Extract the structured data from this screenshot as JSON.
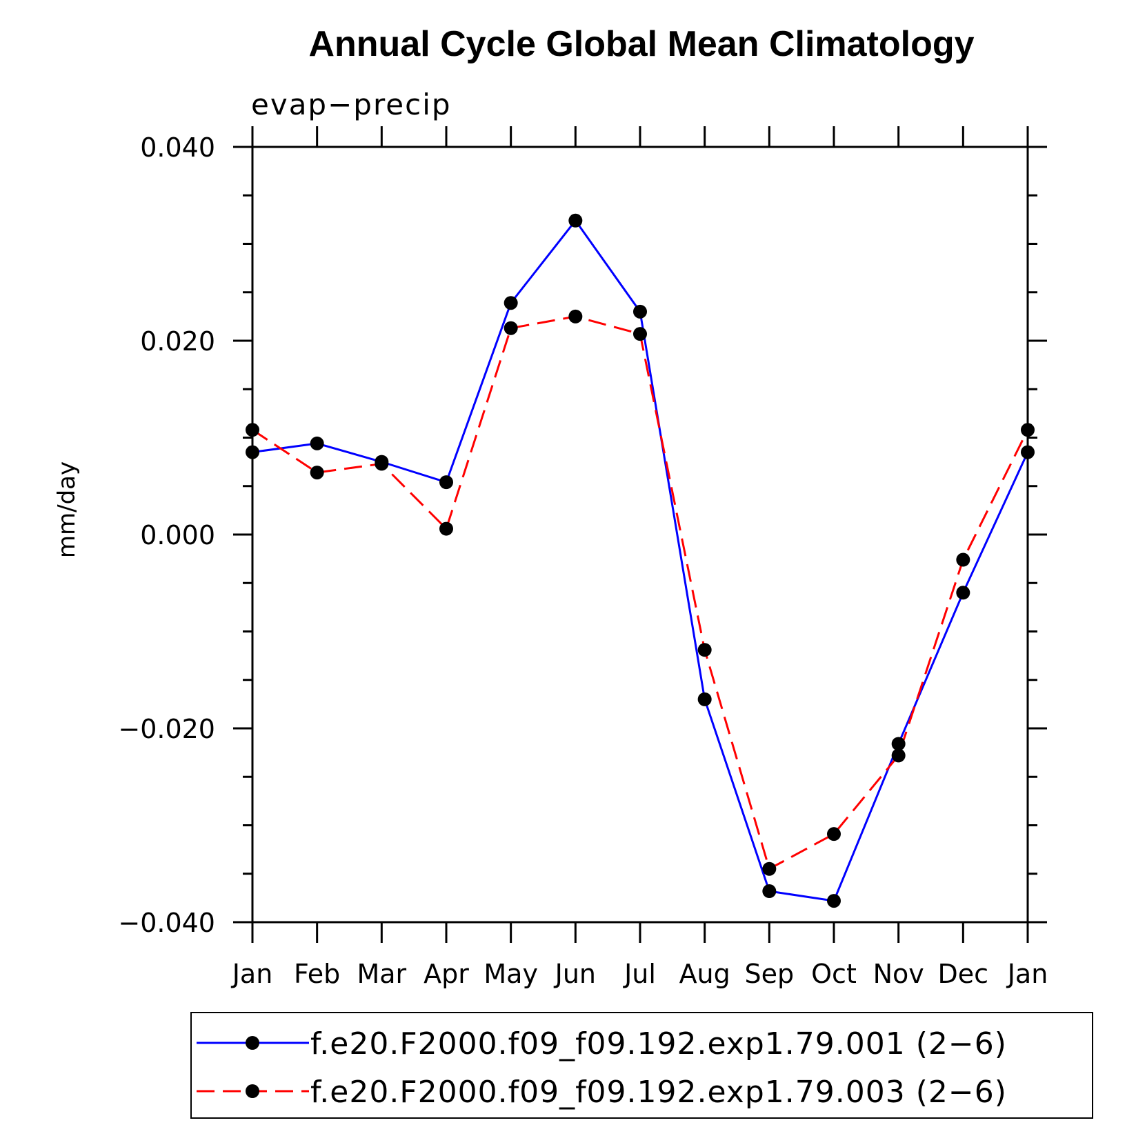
{
  "chart_data": {
    "type": "line",
    "title": "Annual Cycle Global Mean Climatology",
    "subtitle": "evap−precip",
    "xlabel": "",
    "ylabel": "mm/day",
    "categories": [
      "Jan",
      "Feb",
      "Mar",
      "Apr",
      "May",
      "Jun",
      "Jul",
      "Aug",
      "Sep",
      "Oct",
      "Nov",
      "Dec",
      "Jan"
    ],
    "ylim": [
      -0.04,
      0.04
    ],
    "yticks": [
      0.04,
      0.02,
      0.0,
      -0.02,
      -0.04
    ],
    "ytick_labels": [
      "0.040",
      "0.020",
      "0.000",
      "−0.020",
      "−0.040"
    ],
    "legend_position": "bottom",
    "series": [
      {
        "name": "f.e20.F2000.f09_f09.192.exp1.79.001 (2−6)",
        "color": "#0000ff",
        "dash": "solid",
        "values": [
          0.0085,
          0.0094,
          0.0075,
          0.0054,
          0.0239,
          0.0324,
          0.023,
          -0.017,
          -0.0368,
          -0.0378,
          -0.0216,
          -0.006,
          0.0085
        ]
      },
      {
        "name": "f.e20.F2000.f09_f09.192.exp1.79.003 (2−6)",
        "color": "#ff0000",
        "dash": "dashed",
        "values": [
          0.0108,
          0.0064,
          0.0073,
          0.0006,
          0.0213,
          0.0225,
          0.0207,
          -0.0119,
          -0.0345,
          -0.0309,
          -0.0228,
          -0.0026,
          0.0108
        ]
      }
    ]
  }
}
